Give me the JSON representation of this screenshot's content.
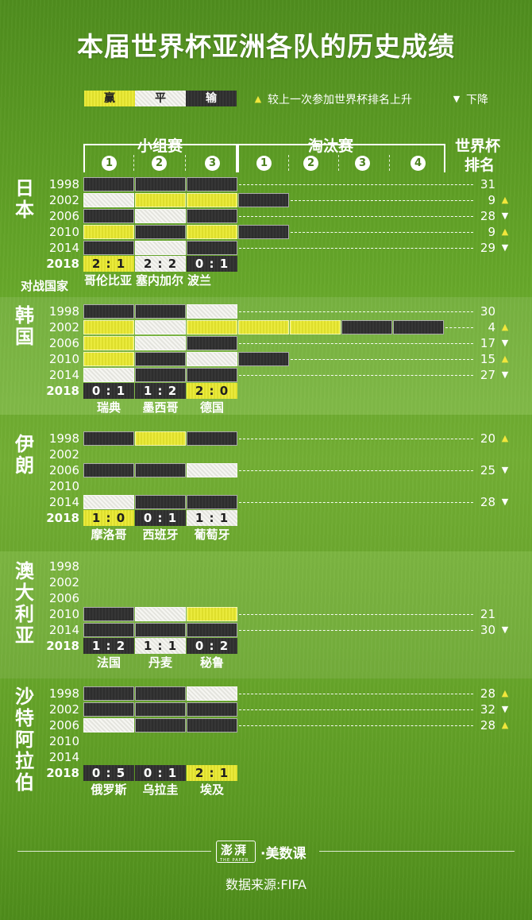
{
  "title": "本届世界杯亚洲各队的历史成绩",
  "legend": {
    "win": "赢",
    "draw": "平",
    "loss": "输",
    "up_text": "较上一次参加世界杯排名上升",
    "down_text": "下降"
  },
  "headers": {
    "group": "小组赛",
    "knockout": "淘汰赛",
    "rank_line1": "世界杯",
    "rank_line2": "排名",
    "group_nums": [
      "1",
      "2",
      "3"
    ],
    "ko_nums": [
      "1",
      "2",
      "3",
      "4"
    ]
  },
  "opponents_label": "对战国家",
  "colors": {
    "win": "#e3e334",
    "draw": "#f2f2ee",
    "loss": "#303030",
    "up": "#f1e63b",
    "background": "#6aab2c"
  },
  "chart_data": {
    "type": "table",
    "years": [
      "1998",
      "2002",
      "2006",
      "2010",
      "2014",
      "2018"
    ],
    "codes": {
      "W": "赢",
      "D": "平",
      "L": "输"
    },
    "teams": [
      {
        "name": "日本",
        "chars": [
          "日",
          "本"
        ],
        "rows": [
          {
            "year": "1998",
            "group": [
              "L",
              "L",
              "L"
            ],
            "knockout": [],
            "rank": "31",
            "trend": ""
          },
          {
            "year": "2002",
            "group": [
              "D",
              "W",
              "W"
            ],
            "knockout": [
              "L"
            ],
            "rank": "9",
            "trend": "up"
          },
          {
            "year": "2006",
            "group": [
              "L",
              "D",
              "L"
            ],
            "knockout": [],
            "rank": "28",
            "trend": "down"
          },
          {
            "year": "2010",
            "group": [
              "W",
              "L",
              "W"
            ],
            "knockout": [
              "L"
            ],
            "rank": "9",
            "trend": "up"
          },
          {
            "year": "2014",
            "group": [
              "L",
              "D",
              "L"
            ],
            "knockout": [],
            "rank": "29",
            "trend": "down"
          }
        ],
        "y2018": {
          "results": [
            "W",
            "D",
            "L"
          ],
          "scores": [
            "2 : 1",
            "2 : 2",
            "0 : 1"
          ],
          "opponents": [
            "哥伦比亚",
            "塞内加尔",
            "波兰"
          ]
        }
      },
      {
        "name": "韩国",
        "chars": [
          "韩",
          "国"
        ],
        "rows": [
          {
            "year": "1998",
            "group": [
              "L",
              "L",
              "D"
            ],
            "knockout": [],
            "rank": "30",
            "trend": ""
          },
          {
            "year": "2002",
            "group": [
              "W",
              "D",
              "W"
            ],
            "knockout": [
              "W",
              "W",
              "L",
              "L"
            ],
            "rank": "4",
            "trend": "up"
          },
          {
            "year": "2006",
            "group": [
              "W",
              "D",
              "L"
            ],
            "knockout": [],
            "rank": "17",
            "trend": "down"
          },
          {
            "year": "2010",
            "group": [
              "W",
              "L",
              "D"
            ],
            "knockout": [
              "L"
            ],
            "rank": "15",
            "trend": "up"
          },
          {
            "year": "2014",
            "group": [
              "D",
              "L",
              "L"
            ],
            "knockout": [],
            "rank": "27",
            "trend": "down"
          }
        ],
        "y2018": {
          "results": [
            "L",
            "L",
            "W"
          ],
          "scores": [
            "0 : 1",
            "1 : 2",
            "2 : 0"
          ],
          "opponents": [
            "瑞典",
            "墨西哥",
            "德国"
          ]
        }
      },
      {
        "name": "伊朗",
        "chars": [
          "伊",
          "朗"
        ],
        "rows": [
          {
            "year": "1998",
            "group": [
              "L",
              "W",
              "L"
            ],
            "knockout": [],
            "rank": "20",
            "trend": "up"
          },
          {
            "year": "2002",
            "group": [],
            "knockout": [],
            "rank": "",
            "trend": ""
          },
          {
            "year": "2006",
            "group": [
              "L",
              "L",
              "D"
            ],
            "knockout": [],
            "rank": "25",
            "trend": "down"
          },
          {
            "year": "2010",
            "group": [],
            "knockout": [],
            "rank": "",
            "trend": ""
          },
          {
            "year": "2014",
            "group": [
              "D",
              "L",
              "L"
            ],
            "knockout": [],
            "rank": "28",
            "trend": "down"
          }
        ],
        "y2018": {
          "results": [
            "W",
            "L",
            "D"
          ],
          "scores": [
            "1 : 0",
            "0 : 1",
            "1 : 1"
          ],
          "opponents": [
            "摩洛哥",
            "西班牙",
            "葡萄牙"
          ]
        }
      },
      {
        "name": "澳大利亚",
        "chars": [
          "澳",
          "大",
          "利",
          "亚"
        ],
        "rows": [
          {
            "year": "1998",
            "group": [],
            "knockout": [],
            "rank": "",
            "trend": ""
          },
          {
            "year": "2002",
            "group": [],
            "knockout": [],
            "rank": "",
            "trend": ""
          },
          {
            "year": "2006",
            "group": [],
            "knockout": [],
            "rank": "",
            "trend": ""
          },
          {
            "year": "2010",
            "group": [
              "L",
              "D",
              "W"
            ],
            "knockout": [],
            "rank": "21",
            "trend": ""
          },
          {
            "year": "2014",
            "group": [
              "L",
              "L",
              "L"
            ],
            "knockout": [],
            "rank": "30",
            "trend": "down"
          }
        ],
        "y2018": {
          "results": [
            "L",
            "D",
            "L"
          ],
          "scores": [
            "1 : 2",
            "1 : 1",
            "0 : 2"
          ],
          "opponents": [
            "法国",
            "丹麦",
            "秘鲁"
          ]
        }
      },
      {
        "name": "沙特阿拉伯",
        "chars": [
          "沙",
          "特",
          "阿",
          "拉",
          "伯"
        ],
        "rows": [
          {
            "year": "1998",
            "group": [
              "L",
              "L",
              "D"
            ],
            "knockout": [],
            "rank": "28",
            "trend": "up"
          },
          {
            "year": "2002",
            "group": [
              "L",
              "L",
              "L"
            ],
            "knockout": [],
            "rank": "32",
            "trend": "down"
          },
          {
            "year": "2006",
            "group": [
              "D",
              "L",
              "L"
            ],
            "knockout": [],
            "rank": "28",
            "trend": "up"
          },
          {
            "year": "2010",
            "group": [],
            "knockout": [],
            "rank": "",
            "trend": ""
          },
          {
            "year": "2014",
            "group": [],
            "knockout": [],
            "rank": "",
            "trend": ""
          }
        ],
        "y2018": {
          "results": [
            "L",
            "L",
            "W"
          ],
          "scores": [
            "0 : 5",
            "0 : 1",
            "2 : 1"
          ],
          "opponents": [
            "俄罗斯",
            "乌拉圭",
            "埃及"
          ]
        }
      }
    ]
  },
  "footer": {
    "logo": "澎湃",
    "logo_sub": "THE PAPER",
    "brand": "·美数课",
    "source": "数据来源:FIFA"
  }
}
